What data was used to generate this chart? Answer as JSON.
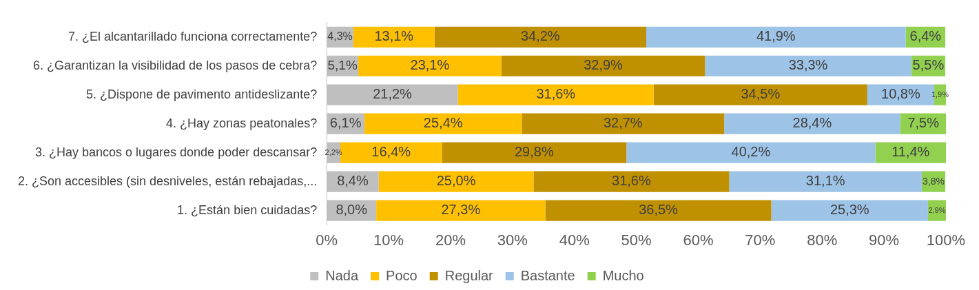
{
  "chart_data": {
    "type": "bar",
    "orientation": "horizontal",
    "stacked": true,
    "categories": [
      "7. ¿El alcantarillado funciona correctamente?",
      "6. ¿Garantizan la visibilidad de los pasos de cebra?",
      "5. ¿Dispone de pavimento antideslizante?",
      "4. ¿Hay zonas peatonales?",
      "3. ¿Hay bancos o lugares donde poder descansar?",
      "2. ¿Son accesibles (sin desniveles, están rebajadas,...",
      "1. ¿Están bien cuidadas?"
    ],
    "series": [
      {
        "name": "Nada",
        "color": "#bfbfbf",
        "values": [
          4.3,
          5.1,
          21.2,
          6.1,
          2.2,
          8.4,
          8.0
        ],
        "value_labels": [
          "4,3%",
          "5,1%",
          "21,2%",
          "6,1%",
          "2,2%",
          "8,4%",
          "8,0%"
        ]
      },
      {
        "name": "Poco",
        "color": "#ffc000",
        "values": [
          13.1,
          23.1,
          31.6,
          25.4,
          16.4,
          25.0,
          27.3
        ],
        "value_labels": [
          "13,1%",
          "23,1%",
          "31,6%",
          "25,4%",
          "16,4%",
          "25,0%",
          "27,3%"
        ]
      },
      {
        "name": "Regular",
        "color": "#bf9000",
        "values": [
          34.2,
          32.9,
          34.5,
          32.7,
          29.8,
          31.6,
          36.5
        ],
        "value_labels": [
          "34,2%",
          "32,9%",
          "34,5%",
          "32,7%",
          "29,8%",
          "31,6%",
          "36,5%"
        ]
      },
      {
        "name": "Bastante",
        "color": "#9dc3e6",
        "values": [
          41.9,
          33.3,
          10.8,
          28.4,
          40.2,
          31.1,
          25.3
        ],
        "value_labels": [
          "41,9%",
          "33,3%",
          "10,8%",
          "28,4%",
          "40,2%",
          "31,1%",
          "25,3%"
        ]
      },
      {
        "name": "Mucho",
        "color": "#92d050",
        "values": [
          6.4,
          5.5,
          1.9,
          7.5,
          11.4,
          3.8,
          2.9
        ],
        "value_labels": [
          "6,4%",
          "5,5%",
          "1,9%",
          "7,5%",
          "11,4%",
          "3,8%",
          "2,9%"
        ]
      }
    ],
    "xlim": [
      0,
      100
    ],
    "xticks": [
      {
        "value": 0,
        "label": "0%"
      },
      {
        "value": 10,
        "label": "10%"
      },
      {
        "value": 20,
        "label": "20%"
      },
      {
        "value": 30,
        "label": "30%"
      },
      {
        "value": 40,
        "label": "40%"
      },
      {
        "value": 50,
        "label": "50%"
      },
      {
        "value": 60,
        "label": "60%"
      },
      {
        "value": 70,
        "label": "70%"
      },
      {
        "value": 80,
        "label": "80%"
      },
      {
        "value": 90,
        "label": "90%"
      },
      {
        "value": 100,
        "label": "100%"
      }
    ],
    "grid": false,
    "legend": "bottom"
  }
}
